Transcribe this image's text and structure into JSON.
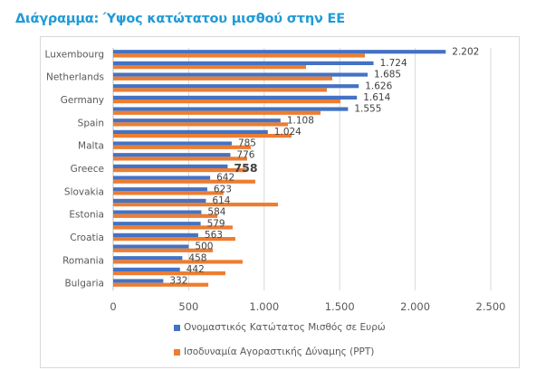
{
  "title": "Διάγραμμα: Ύψος κατώτατου μισθού στην ΕΕ",
  "chart_data": {
    "type": "bar",
    "orientation": "horizontal",
    "title": "Διάγραμμα: Ύψος κατώτατου μισθού στην ΕΕ",
    "xlabel": "",
    "ylabel": "",
    "xlim": [
      0,
      2500
    ],
    "xticks": [
      0,
      500,
      1000,
      1500,
      2000,
      2500
    ],
    "xtick_labels": [
      "0",
      "500",
      "1.000",
      "1.500",
      "2.000",
      "2.500"
    ],
    "grid": "vertical",
    "legend_position": "bottom",
    "categories": [
      "Luxembourg",
      "",
      "Netherlands",
      "",
      "Germany",
      "",
      "Spain",
      "",
      "Malta",
      "",
      "Greece",
      "",
      "Slovakia",
      "",
      "Estonia",
      "",
      "Croatia",
      "",
      "Romania",
      "",
      "Bulgaria"
    ],
    "visible_category_labels": [
      "Luxembourg",
      "Netherlands",
      "Germany",
      "Spain",
      "Malta",
      "Greece",
      "Slovakia",
      "Estonia",
      "Croatia",
      "Romania",
      "Bulgaria"
    ],
    "series": [
      {
        "name": "Ονομαστικός Κατώτατος Μισθός σε Ευρώ",
        "color": "#4472c4",
        "values": [
          2202,
          1724,
          1685,
          1626,
          1614,
          1555,
          1108,
          1024,
          785,
          776,
          758,
          642,
          623,
          614,
          584,
          579,
          563,
          500,
          458,
          442,
          332
        ],
        "labels": [
          "2.202",
          "1.724",
          "1.685",
          "1.626",
          "1.614",
          "1.555",
          "1.108",
          "1.024",
          "785",
          "776",
          "758",
          "642",
          "623",
          "614",
          "584",
          "579",
          "563",
          "500",
          "458",
          "442",
          "332"
        ],
        "highlight_label": "758"
      },
      {
        "name": "Ισοδυναμία Αγοραστικής Δύναμης (PPT)",
        "color": "#ed7d31",
        "values": [
          1667,
          1277,
          1451,
          1415,
          1505,
          1373,
          1157,
          1181,
          911,
          887,
          881,
          941,
          730,
          1091,
          690,
          791,
          809,
          660,
          857,
          743,
          630
        ]
      }
    ]
  }
}
